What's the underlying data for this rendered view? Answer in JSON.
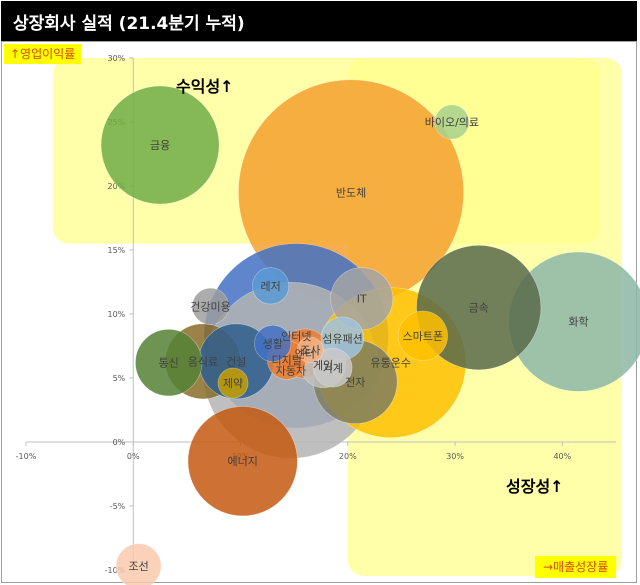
{
  "title": "상장회사 실적 (21.4분기 누적)",
  "colors": {
    "yellow_box": "#ffff8c",
    "axis": "#bfbfbf"
  },
  "chart_data": {
    "type": "scatter",
    "xlabel": "→매출성장률",
    "ylabel": "↑영업이익률",
    "xlim": [
      -10,
      45
    ],
    "ylim": [
      -10,
      30
    ],
    "x_ticks": [
      "-10%",
      "0%",
      "10%",
      "20%",
      "30%",
      "40%"
    ],
    "y_ticks": [
      "-10%",
      "-5%",
      "0%",
      "5%",
      "10%",
      "15%",
      "20%",
      "25%",
      "30%"
    ],
    "annotations": [
      "수익성↑",
      "성장성↑"
    ],
    "points": [
      {
        "label": "금융",
        "x": 2.5,
        "y": 23.2,
        "r": 5.5,
        "color": "#70ad47"
      },
      {
        "label": "반도체",
        "x": 20.3,
        "y": 19.5,
        "r": 10.5,
        "color": "#f5a030"
      },
      {
        "label": "바이오/의료",
        "x": 29.7,
        "y": 25.0,
        "r": 1.6,
        "color": "#a9d18e"
      },
      {
        "label": "레저",
        "x": 12.8,
        "y": 12.2,
        "r": 1.7,
        "color": "#5b9bd5"
      },
      {
        "label": "IT",
        "x": 21.3,
        "y": 11.2,
        "r": 2.9,
        "color": "#a5a5a5"
      },
      {
        "label": "건강미용",
        "x": 7.2,
        "y": 10.6,
        "r": 1.7,
        "color": "#9e9e9e"
      },
      {
        "label": "금속",
        "x": 32.2,
        "y": 10.5,
        "r": 5.8,
        "color": "#5a6b4c"
      },
      {
        "label": "화학",
        "x": 41.5,
        "y": 9.4,
        "r": 6.5,
        "color": "#8cb8a8"
      },
      {
        "label": "섬유패션",
        "x": 19.5,
        "y": 8.1,
        "r": 2.0,
        "color": "#a0c4e0"
      },
      {
        "label": "스마트폰",
        "x": 27.0,
        "y": 8.3,
        "r": 2.3,
        "color": "#ffc000"
      },
      {
        "label": "생활",
        "x": 13.0,
        "y": 7.7,
        "r": 1.7,
        "color": "#4472c4"
      },
      {
        "label": "엔터",
        "x": 16.0,
        "y": 6.9,
        "r": 2.3,
        "color": "#ed7d31"
      },
      {
        "label": "조사",
        "x": 16.5,
        "y": 7.2,
        "r": 1.2,
        "color": "#f4b183"
      },
      {
        "label": "디지털",
        "x": 14.3,
        "y": 6.4,
        "r": 1.8,
        "color": "#ed7d31"
      },
      {
        "label": "통신",
        "x": 3.3,
        "y": 6.2,
        "r": 3.1,
        "color": "#548235"
      },
      {
        "label": "음식료",
        "x": 6.5,
        "y": 6.3,
        "r": 3.5,
        "color": "#8a6d2a"
      },
      {
        "label": "건설",
        "x": 9.6,
        "y": 6.3,
        "r": 3.5,
        "color": "#2f5f8f"
      },
      {
        "label": "제약",
        "x": 9.3,
        "y": 4.6,
        "r": 1.4,
        "color": "#c9a000"
      },
      {
        "label": "인터넷",
        "x": 15.2,
        "y": 8.3,
        "r": 8.6,
        "color": "#4472c4"
      },
      {
        "label": "자동차",
        "x": 14.7,
        "y": 5.6,
        "r": 8.2,
        "color": "#b4b4b4"
      },
      {
        "label": "게임",
        "x": 17.7,
        "y": 6.0,
        "r": 2.1,
        "color": "#c0c0c0"
      },
      {
        "label": "기계",
        "x": 18.6,
        "y": 5.8,
        "r": 1.8,
        "color": "#c9c9c9"
      },
      {
        "label": "유통운수",
        "x": 24.0,
        "y": 6.2,
        "r": 7.0,
        "color": "#ffc000"
      },
      {
        "label": "전자",
        "x": 20.7,
        "y": 4.7,
        "r": 3.9,
        "color": "#7f7f60"
      },
      {
        "label": "에너지",
        "x": 10.2,
        "y": -1.5,
        "r": 5.1,
        "color": "#c55a11"
      },
      {
        "label": "조선",
        "x": 0.5,
        "y": -9.7,
        "r": 2.1,
        "color": "#f8cbad"
      }
    ]
  }
}
